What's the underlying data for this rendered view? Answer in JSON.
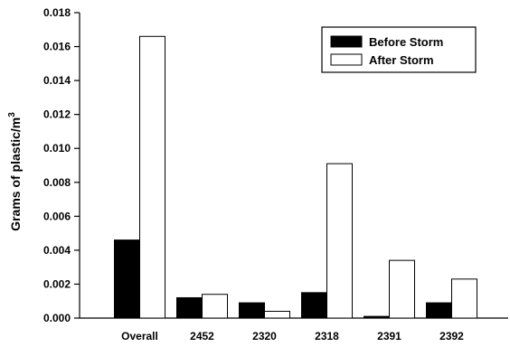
{
  "chart_data": {
    "type": "bar",
    "title": "",
    "xlabel": "",
    "ylabel": "Grams of plastic/m",
    "ylabel_superscript": "3",
    "categories": [
      "Overall",
      "2452",
      "2320",
      "2318",
      "2391",
      "2392"
    ],
    "series": [
      {
        "name": "Before Storm",
        "fill": "#000000",
        "values": [
          0.0046,
          0.0012,
          0.0009,
          0.0015,
          0.0001,
          0.0009
        ]
      },
      {
        "name": "After Storm",
        "fill": "#ffffff",
        "values": [
          0.0166,
          0.0014,
          0.0004,
          0.0091,
          0.0034,
          0.0023
        ]
      }
    ],
    "ylim": [
      0,
      0.018
    ],
    "yticks": [
      "0.000",
      "0.002",
      "0.004",
      "0.006",
      "0.008",
      "0.010",
      "0.012",
      "0.014",
      "0.016",
      "0.018"
    ],
    "grid": false,
    "legend_position": "top-right"
  }
}
